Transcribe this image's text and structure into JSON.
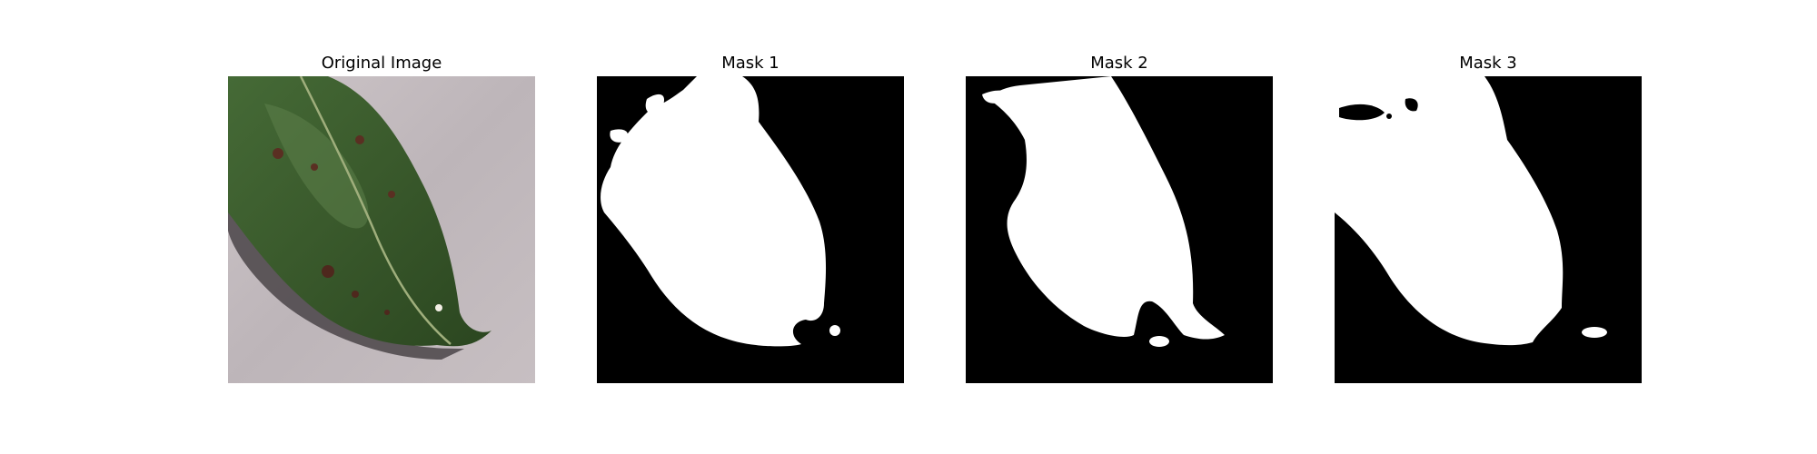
{
  "panels": [
    {
      "title": "Original Image"
    },
    {
      "title": "Mask 1"
    },
    {
      "title": "Mask 2"
    },
    {
      "title": "Mask 3"
    }
  ],
  "colors": {
    "background": "#ffffff",
    "mask_background": "#000000",
    "mask_foreground": "#ffffff",
    "leaf_green": "#3b5a2a",
    "surface_gray": "#bfb8bb"
  }
}
